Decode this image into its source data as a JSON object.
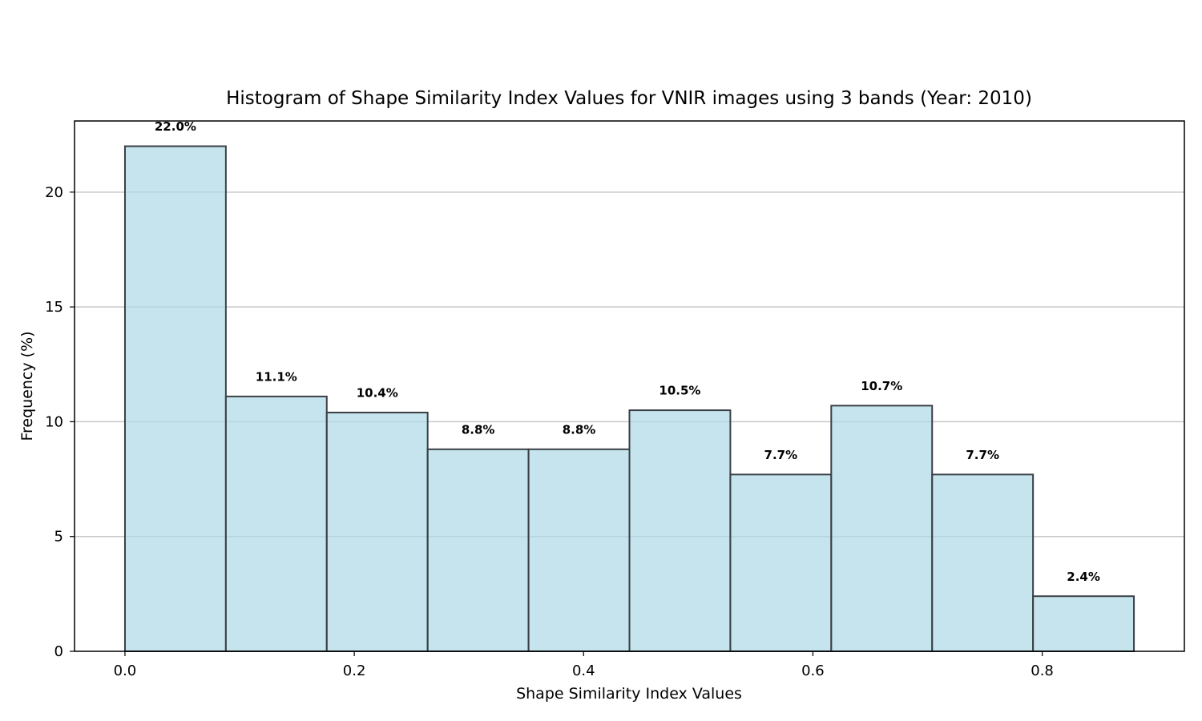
{
  "chart_data": {
    "type": "bar",
    "title": "Histogram of Shape Similarity Index Values for VNIR images using 3 bands (Year: 2010)",
    "xlabel": "Shape Similarity Index Values",
    "ylabel": "Frequency (%)",
    "bin_edges": [
      0.0,
      0.088,
      0.176,
      0.264,
      0.352,
      0.44,
      0.528,
      0.616,
      0.704,
      0.792,
      0.88
    ],
    "values": [
      22.0,
      11.1,
      10.4,
      8.8,
      8.8,
      10.5,
      7.7,
      10.7,
      7.7,
      2.4
    ],
    "labels": [
      "22.0%",
      "11.1%",
      "10.4%",
      "8.8%",
      "8.8%",
      "10.5%",
      "7.7%",
      "10.7%",
      "7.7%",
      "2.4%"
    ],
    "xlim": [
      -0.044,
      0.924
    ],
    "ylim": [
      0,
      23.1
    ],
    "xticks": [
      0.0,
      0.2,
      0.4,
      0.6,
      0.8
    ],
    "xtick_labels": [
      "0.0",
      "0.2",
      "0.4",
      "0.6",
      "0.8"
    ],
    "yticks": [
      0,
      5,
      10,
      15,
      20
    ],
    "ytick_labels": [
      "0",
      "5",
      "10",
      "15",
      "20"
    ],
    "grid": "y-axis",
    "colors": {
      "bar_fill": "#add8e6",
      "bar_edge": "#000000",
      "grid": "#c8c8c8"
    }
  }
}
